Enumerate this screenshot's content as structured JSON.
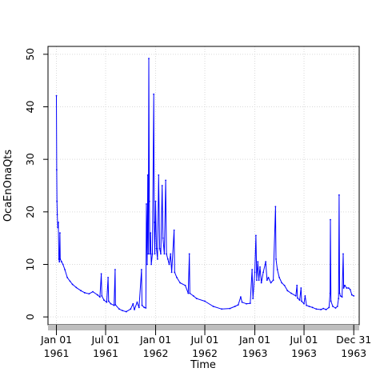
{
  "chart_data": {
    "type": "line",
    "xlabel": "Time",
    "ylabel": "OcaEnOnaQts",
    "ylim": [
      -1.5,
      51.5
    ],
    "xlim": [
      "1960-12-01",
      "1964-01-20"
    ],
    "grid": true,
    "y_ticks": [
      0,
      10,
      20,
      30,
      40,
      50
    ],
    "x_ticks": [
      {
        "date": "1961-01-01",
        "line1": "Jan 01",
        "line2": "1961"
      },
      {
        "date": "1961-07-01",
        "line1": "Jul 01",
        "line2": "1961"
      },
      {
        "date": "1962-01-01",
        "line1": "Jan 01",
        "line2": "1962"
      },
      {
        "date": "1962-07-01",
        "line1": "Jul 01",
        "line2": "1962"
      },
      {
        "date": "1963-01-01",
        "line1": "Jan 01",
        "line2": "1963"
      },
      {
        "date": "1963-07-01",
        "line1": "Jul 01",
        "line2": "1963"
      },
      {
        "date": "1963-12-31",
        "line1": "Dec 31",
        "line2": "1963"
      }
    ],
    "colors": {
      "series": "#0000ff",
      "grid": "#d9d9d9",
      "rangebar": "#bebebe"
    },
    "series": [
      {
        "values": [
          [
            "1961-01-01",
            42.1
          ],
          [
            "1961-01-02",
            28.0
          ],
          [
            "1961-01-03",
            22.0
          ],
          [
            "1961-01-04",
            19.5
          ],
          [
            "1961-01-06",
            17.0
          ],
          [
            "1961-01-08",
            18.0
          ],
          [
            "1961-01-10",
            11.0
          ],
          [
            "1961-01-12",
            10.5
          ],
          [
            "1961-01-14",
            16.0
          ],
          [
            "1961-01-15",
            11.0
          ],
          [
            "1961-01-20",
            10.5
          ],
          [
            "1961-01-25",
            10.0
          ],
          [
            "1961-02-01",
            9.0
          ],
          [
            "1961-02-10",
            7.5
          ],
          [
            "1961-02-20",
            6.8
          ],
          [
            "1961-03-01",
            6.2
          ],
          [
            "1961-03-15",
            5.6
          ],
          [
            "1961-04-01",
            5.0
          ],
          [
            "1961-04-15",
            4.6
          ],
          [
            "1961-05-01",
            4.4
          ],
          [
            "1961-05-15",
            4.8
          ],
          [
            "1961-06-01",
            4.2
          ],
          [
            "1961-06-10",
            3.8
          ],
          [
            "1961-06-15",
            8.2
          ],
          [
            "1961-06-17",
            4.0
          ],
          [
            "1961-06-25",
            3.2
          ],
          [
            "1961-07-05",
            2.8
          ],
          [
            "1961-07-10",
            7.5
          ],
          [
            "1961-07-12",
            3.0
          ],
          [
            "1961-07-20",
            2.5
          ],
          [
            "1961-08-01",
            2.2
          ],
          [
            "1961-08-05",
            9.0
          ],
          [
            "1961-08-06",
            2.3
          ],
          [
            "1961-08-20",
            1.5
          ],
          [
            "1961-09-01",
            1.2
          ],
          [
            "1961-09-15",
            1.0
          ],
          [
            "1961-10-01",
            1.5
          ],
          [
            "1961-10-10",
            2.5
          ],
          [
            "1961-10-15",
            1.4
          ],
          [
            "1961-10-25",
            2.8
          ],
          [
            "1961-11-01",
            1.8
          ],
          [
            "1961-11-10",
            9.0
          ],
          [
            "1961-11-12",
            2.2
          ],
          [
            "1961-11-20",
            1.8
          ],
          [
            "1961-11-26",
            1.7
          ],
          [
            "1961-11-28",
            21.5
          ],
          [
            "1961-12-01",
            10.0
          ],
          [
            "1961-12-03",
            27.0
          ],
          [
            "1961-12-05",
            12.0
          ],
          [
            "1961-12-07",
            49.2
          ],
          [
            "1961-12-09",
            22.0
          ],
          [
            "1961-12-11",
            12.0
          ],
          [
            "1961-12-13",
            16.0
          ],
          [
            "1961-12-16",
            10.0
          ],
          [
            "1961-12-20",
            12.0
          ],
          [
            "1961-12-25",
            42.4
          ],
          [
            "1961-12-27",
            18.0
          ],
          [
            "1961-12-29",
            12.0
          ],
          [
            "1962-01-01",
            22.0
          ],
          [
            "1962-01-04",
            13.0
          ],
          [
            "1962-01-08",
            11.0
          ],
          [
            "1962-01-12",
            27.0
          ],
          [
            "1962-01-16",
            13.0
          ],
          [
            "1962-01-20",
            12.0
          ],
          [
            "1962-01-25",
            25.0
          ],
          [
            "1962-01-28",
            15.0
          ],
          [
            "1962-02-02",
            12.0
          ],
          [
            "1962-02-07",
            26.0
          ],
          [
            "1962-02-10",
            12.0
          ],
          [
            "1962-02-15",
            11.0
          ],
          [
            "1962-02-20",
            10.0
          ],
          [
            "1962-02-25",
            12.0
          ],
          [
            "1962-03-01",
            8.5
          ],
          [
            "1962-03-10",
            16.5
          ],
          [
            "1962-03-12",
            8.5
          ],
          [
            "1962-03-20",
            7.5
          ],
          [
            "1962-04-01",
            6.5
          ],
          [
            "1962-04-20",
            6.0
          ],
          [
            "1962-05-01",
            4.5
          ],
          [
            "1962-05-05",
            12.0
          ],
          [
            "1962-05-07",
            4.5
          ],
          [
            "1962-05-20",
            4.0
          ],
          [
            "1962-06-01",
            3.5
          ],
          [
            "1962-07-01",
            3.0
          ],
          [
            "1962-08-01",
            2.0
          ],
          [
            "1962-09-01",
            1.5
          ],
          [
            "1962-10-01",
            1.6
          ],
          [
            "1962-10-20",
            2.0
          ],
          [
            "1962-11-01",
            2.3
          ],
          [
            "1962-11-10",
            3.8
          ],
          [
            "1962-11-15",
            2.8
          ],
          [
            "1962-12-01",
            2.5
          ],
          [
            "1962-12-15",
            2.6
          ],
          [
            "1962-12-22",
            9.0
          ],
          [
            "1962-12-25",
            3.5
          ],
          [
            "1963-01-01",
            8.5
          ],
          [
            "1963-01-05",
            15.5
          ],
          [
            "1963-01-08",
            7.0
          ],
          [
            "1963-01-12",
            10.5
          ],
          [
            "1963-01-16",
            7.0
          ],
          [
            "1963-01-20",
            9.5
          ],
          [
            "1963-01-25",
            6.5
          ],
          [
            "1963-02-01",
            8.5
          ],
          [
            "1963-02-10",
            10.5
          ],
          [
            "1963-02-15",
            7.0
          ],
          [
            "1963-02-20",
            7.5
          ],
          [
            "1963-03-01",
            6.5
          ],
          [
            "1963-03-10",
            7.0
          ],
          [
            "1963-03-18",
            21.0
          ],
          [
            "1963-03-20",
            11.0
          ],
          [
            "1963-03-25",
            9.0
          ],
          [
            "1963-04-01",
            7.5
          ],
          [
            "1963-04-10",
            6.5
          ],
          [
            "1963-04-20",
            6.0
          ],
          [
            "1963-05-01",
            5.0
          ],
          [
            "1963-05-15",
            4.5
          ],
          [
            "1963-06-01",
            4.0
          ],
          [
            "1963-06-05",
            6.0
          ],
          [
            "1963-06-07",
            3.6
          ],
          [
            "1963-06-15",
            3.2
          ],
          [
            "1963-06-20",
            5.5
          ],
          [
            "1963-06-22",
            3.0
          ],
          [
            "1963-07-01",
            2.5
          ],
          [
            "1963-07-05",
            4.0
          ],
          [
            "1963-07-10",
            2.2
          ],
          [
            "1963-07-20",
            2.0
          ],
          [
            "1963-08-01",
            1.8
          ],
          [
            "1963-08-15",
            1.5
          ],
          [
            "1963-09-01",
            1.4
          ],
          [
            "1963-09-10",
            1.6
          ],
          [
            "1963-09-20",
            1.4
          ],
          [
            "1963-10-01",
            1.8
          ],
          [
            "1963-10-05",
            4.5
          ],
          [
            "1963-10-06",
            18.5
          ],
          [
            "1963-10-08",
            3.0
          ],
          [
            "1963-10-15",
            2.0
          ],
          [
            "1963-10-25",
            1.7
          ],
          [
            "1963-11-01",
            2.0
          ],
          [
            "1963-11-05",
            3.5
          ],
          [
            "1963-11-07",
            23.2
          ],
          [
            "1963-11-09",
            4.5
          ],
          [
            "1963-11-12",
            4.0
          ],
          [
            "1963-11-18",
            3.8
          ],
          [
            "1963-11-22",
            12.0
          ],
          [
            "1963-11-24",
            5.5
          ],
          [
            "1963-11-28",
            6.0
          ],
          [
            "1963-12-05",
            5.5
          ],
          [
            "1963-12-12",
            5.5
          ],
          [
            "1963-12-18",
            5.2
          ],
          [
            "1963-12-24",
            4.2
          ],
          [
            "1963-12-31",
            4.0
          ]
        ]
      }
    ]
  }
}
